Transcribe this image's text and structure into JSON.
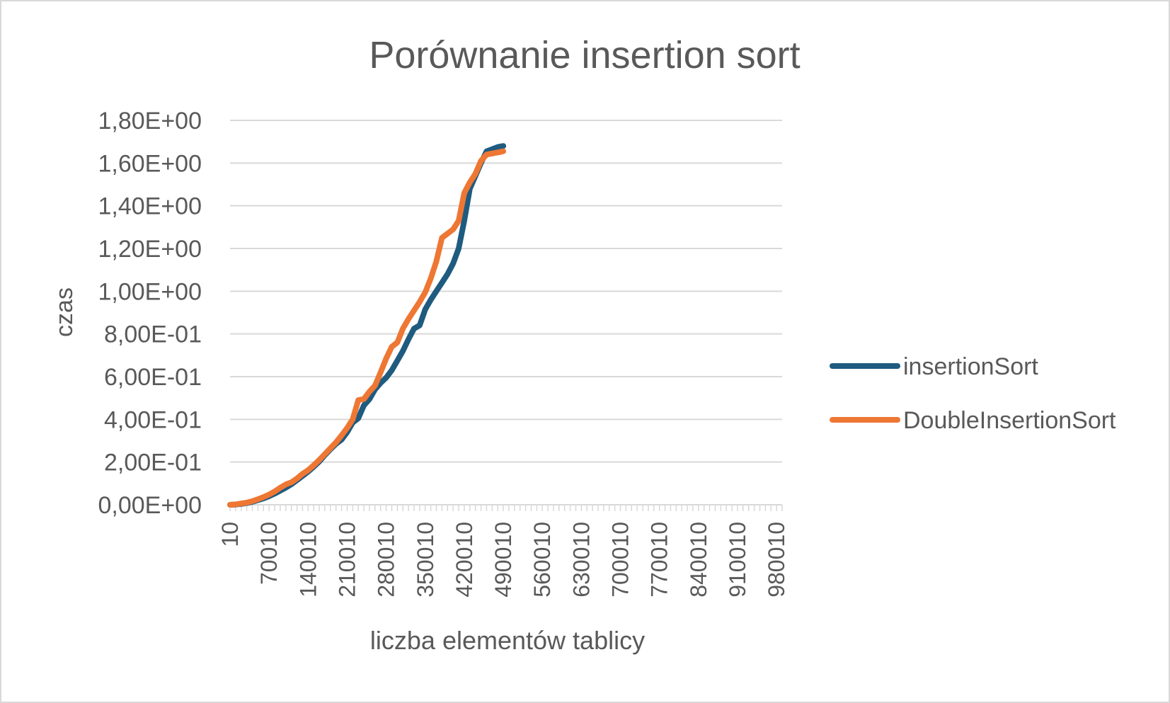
{
  "chart_data": {
    "type": "line",
    "title": "Porównanie insertion sort",
    "xlabel": "liczba elementów tablicy",
    "ylabel": "czas",
    "x_tick_labels": [
      "10",
      "70010",
      "140010",
      "210010",
      "280010",
      "350010",
      "420010",
      "490010",
      "560010",
      "630010",
      "700010",
      "770010",
      "840010",
      "910010",
      "980010"
    ],
    "y_tick_labels": [
      "0,00E+00",
      "2,00E-01",
      "4,00E-01",
      "6,00E-01",
      "8,00E-01",
      "1,00E+00",
      "1,20E+00",
      "1,40E+00",
      "1,60E+00",
      "1,80E+00"
    ],
    "ylim": [
      0,
      1.8
    ],
    "xlim": [
      10,
      990010
    ],
    "grid": "horizontal",
    "legend_position": "right",
    "colors": {
      "insertionSort": "#1f5b7f",
      "DoubleInsertionSort": "#ee7733",
      "grid": "#d9d9d9",
      "text": "#595959"
    },
    "x": [
      10,
      10010,
      20010,
      30010,
      40010,
      50010,
      60010,
      70010,
      80010,
      90010,
      100010,
      110010,
      120010,
      130010,
      140010,
      150010,
      160010,
      170010,
      180010,
      190010,
      200010,
      210010,
      220010,
      230010,
      240010,
      250010,
      260010,
      270010,
      280010,
      290010,
      300010,
      310010,
      320010,
      330010,
      340010,
      350010,
      360010,
      370010,
      380010,
      390010,
      400010,
      410010,
      420010,
      430010,
      440010,
      450010,
      460010,
      470010,
      480010,
      490010
    ],
    "series": [
      {
        "name": "insertionSort",
        "values": [
          0.0001,
          0.001,
          0.004,
          0.008,
          0.014,
          0.022,
          0.03,
          0.04,
          0.052,
          0.066,
          0.08,
          0.096,
          0.115,
          0.135,
          0.155,
          0.178,
          0.203,
          0.232,
          0.26,
          0.285,
          0.305,
          0.34,
          0.385,
          0.405,
          0.465,
          0.495,
          0.54,
          0.57,
          0.595,
          0.63,
          0.675,
          0.72,
          0.775,
          0.825,
          0.84,
          0.915,
          0.96,
          1.0,
          1.04,
          1.08,
          1.13,
          1.2,
          1.33,
          1.48,
          1.54,
          1.6,
          1.655,
          1.665,
          1.675,
          1.68
        ]
      },
      {
        "name": "DoubleInsertionSort",
        "values": [
          0.0001,
          0.002,
          0.006,
          0.01,
          0.017,
          0.026,
          0.036,
          0.048,
          0.062,
          0.08,
          0.095,
          0.105,
          0.123,
          0.145,
          0.162,
          0.185,
          0.21,
          0.237,
          0.265,
          0.292,
          0.325,
          0.36,
          0.4,
          0.49,
          0.495,
          0.53,
          0.558,
          0.62,
          0.685,
          0.74,
          0.76,
          0.825,
          0.87,
          0.91,
          0.95,
          0.995,
          1.06,
          1.14,
          1.25,
          1.27,
          1.29,
          1.33,
          1.46,
          1.51,
          1.55,
          1.61,
          1.64,
          1.645,
          1.65,
          1.655
        ]
      }
    ]
  }
}
